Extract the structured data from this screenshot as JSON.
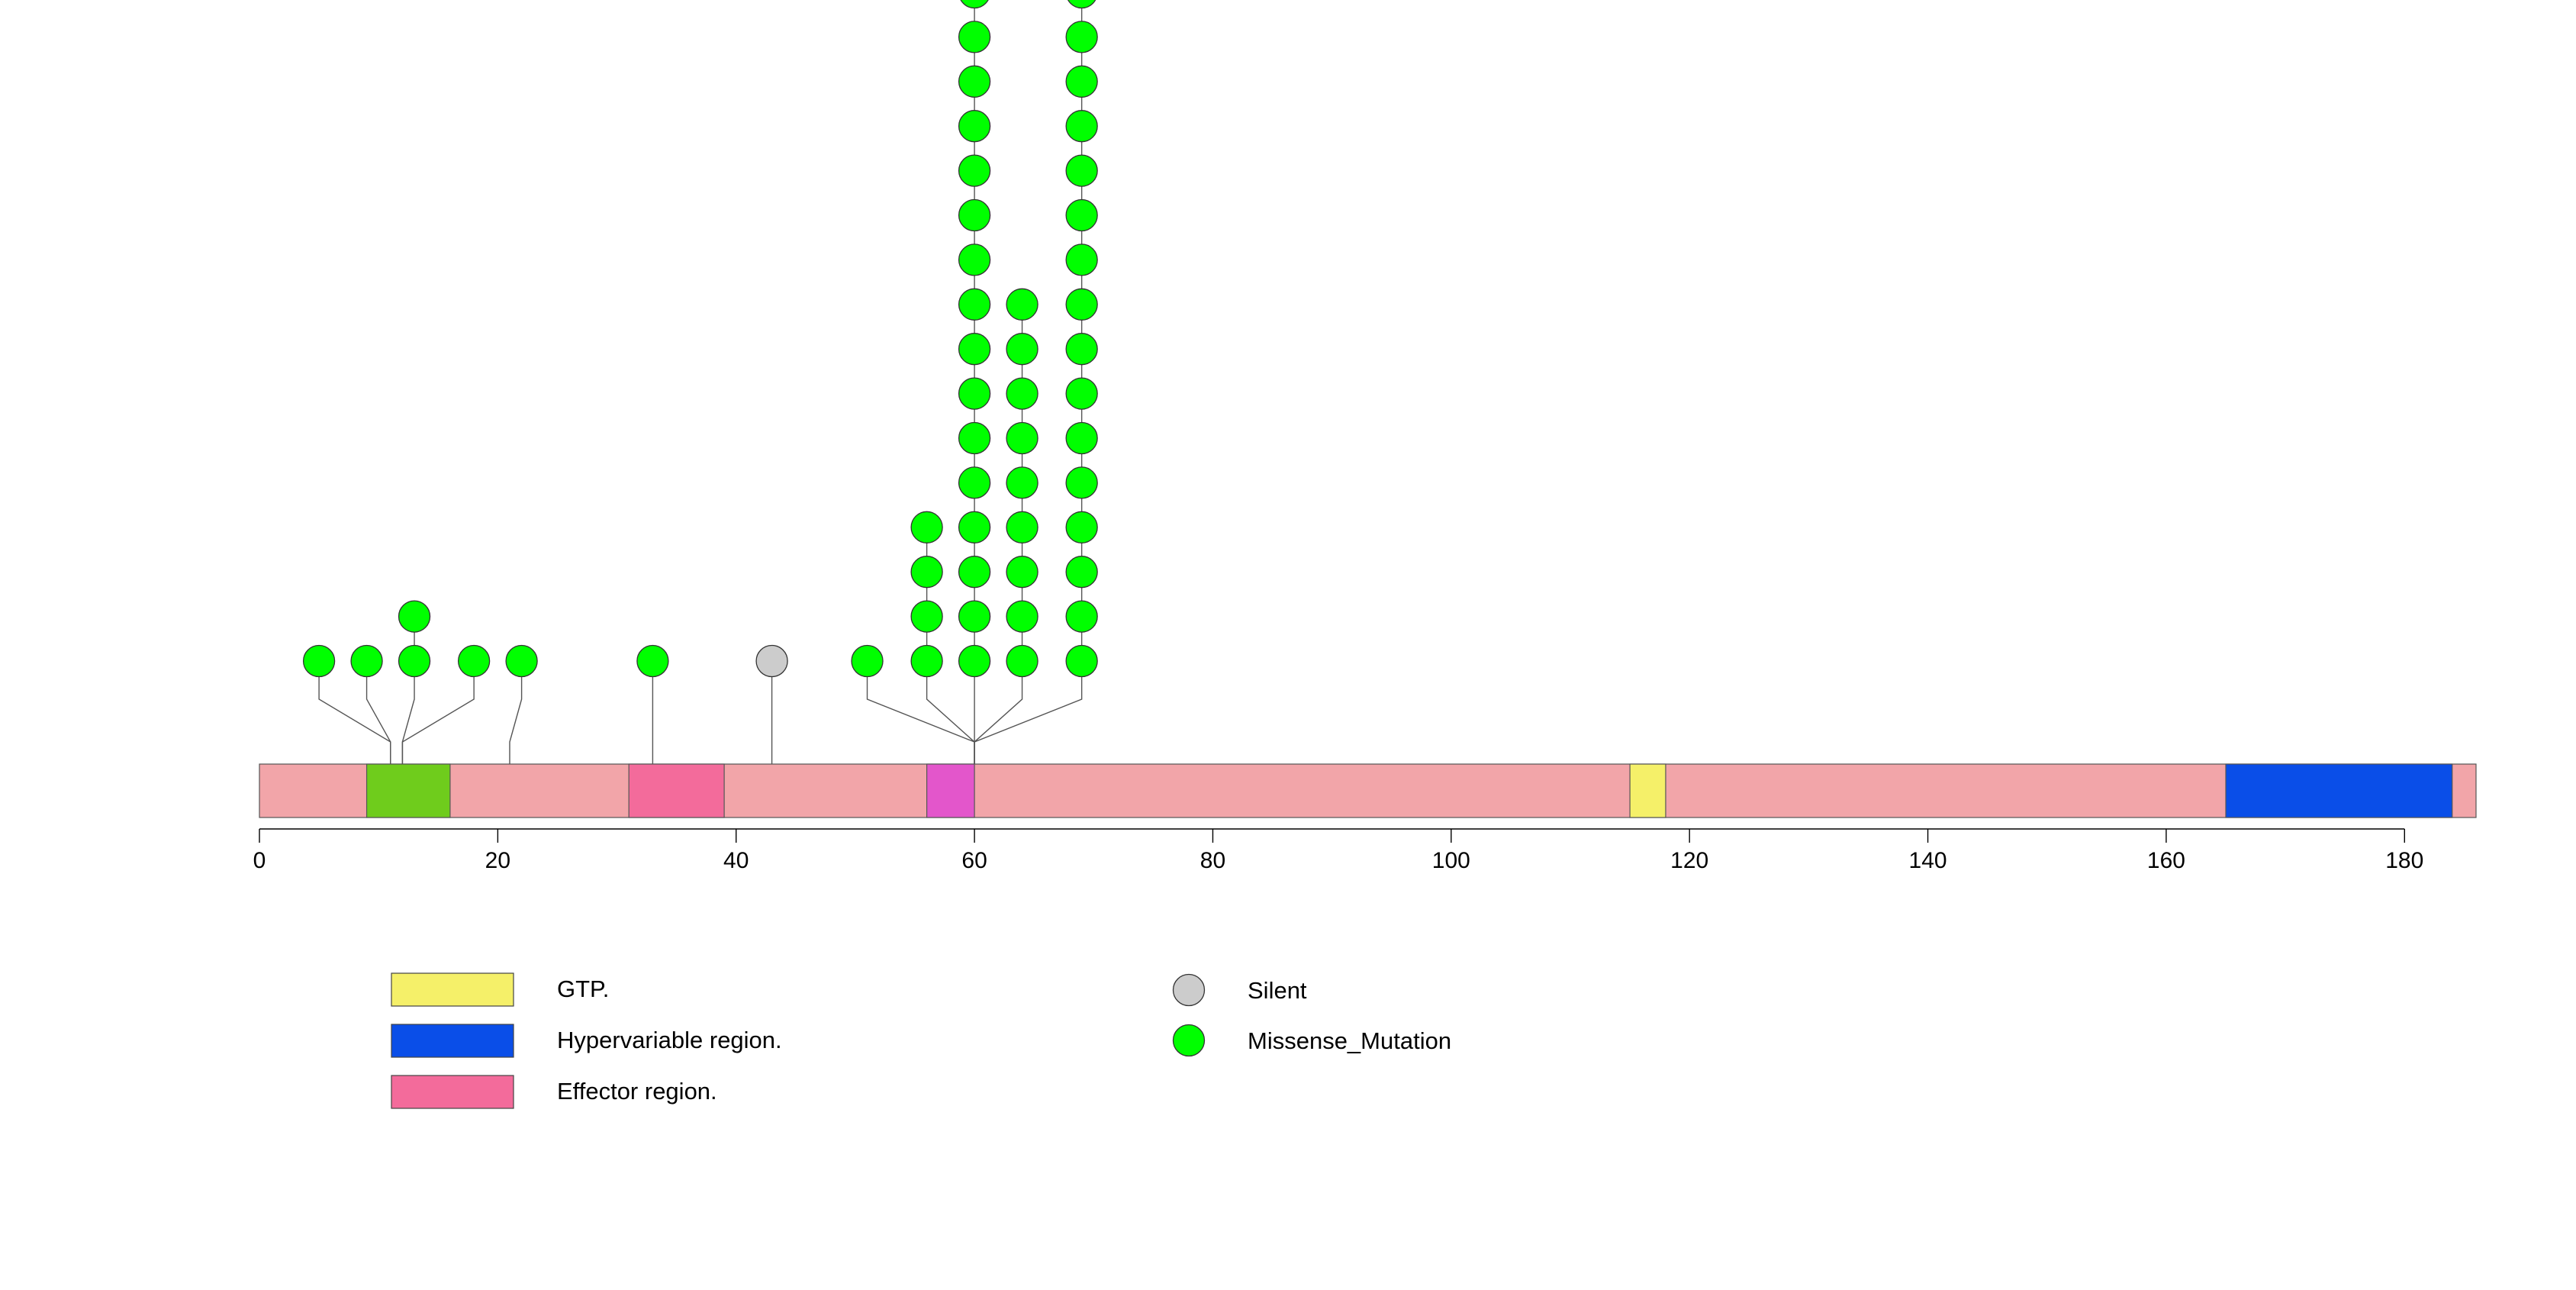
{
  "chart_data": {
    "type": "lollipop",
    "title": "",
    "xlabel": "",
    "ylabel": "",
    "protein_length": 186,
    "xlim": [
      0,
      186
    ],
    "x_ticks": [
      0,
      20,
      40,
      60,
      80,
      100,
      120,
      140,
      160,
      180
    ],
    "x_tick_labels": [
      "0",
      "20",
      "40",
      "60",
      "80",
      "100",
      "120",
      "140",
      "160",
      "180"
    ],
    "backbone_color": "#f2a5a9",
    "domains": [
      {
        "name": "green-region",
        "start": 9,
        "end": 16,
        "color": "#6fcc1c"
      },
      {
        "name": "effector-region",
        "start": 31,
        "end": 39,
        "color": "#f36b9b"
      },
      {
        "name": "magenta-region",
        "start": 56,
        "end": 60,
        "color": "#e356cb"
      },
      {
        "name": "gtp-region",
        "start": 115,
        "end": 118,
        "color": "#f5f069"
      },
      {
        "name": "hypervariable-region",
        "start": 165,
        "end": 184,
        "color": "#0a4ee8"
      }
    ],
    "mutations": [
      {
        "position": 5,
        "count": 1,
        "type": "Missense_Mutation"
      },
      {
        "position": 9,
        "count": 1,
        "type": "Missense_Mutation"
      },
      {
        "position": 13,
        "count": 2,
        "type": "Missense_Mutation"
      },
      {
        "position": 18,
        "count": 1,
        "type": "Missense_Mutation"
      },
      {
        "position": 22,
        "count": 1,
        "type": "Missense_Mutation"
      },
      {
        "position": 33,
        "count": 1,
        "type": "Missense_Mutation"
      },
      {
        "position": 43,
        "count": 1,
        "type": "Silent"
      },
      {
        "position": 51,
        "count": 1,
        "type": "Missense_Mutation"
      },
      {
        "position": 56,
        "count": 4,
        "type": "Missense_Mutation"
      },
      {
        "position": 60,
        "count": 16,
        "type": "Missense_Mutation"
      },
      {
        "position": 64,
        "count": 9,
        "type": "Missense_Mutation"
      },
      {
        "position": 69,
        "count": 16,
        "type": "Missense_Mutation"
      }
    ],
    "mutation_colors": {
      "Silent": "#cccccc",
      "Missense_Mutation": "#00ff00"
    },
    "legend_domains": [
      {
        "label": "GTP.",
        "color": "#f5f069"
      },
      {
        "label": "Hypervariable region.",
        "color": "#0a4ee8"
      },
      {
        "label": "Effector region.",
        "color": "#f36b9b"
      }
    ],
    "legend_mutations": [
      {
        "label": "Silent",
        "color": "#cccccc"
      },
      {
        "label": "Missense_Mutation",
        "color": "#00ff00"
      }
    ],
    "legend_position": "bottom-left"
  }
}
